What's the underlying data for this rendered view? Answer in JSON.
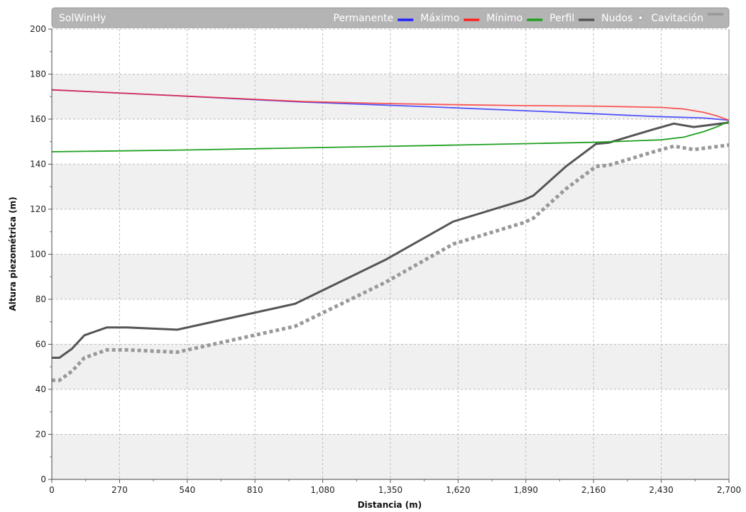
{
  "app_title": "SolWinHy",
  "chart_data": {
    "type": "line",
    "xlabel": "Distancia (m)",
    "ylabel": "Altura piezométrica (m)",
    "xlim": [
      0,
      2700
    ],
    "ylim": [
      0,
      200
    ],
    "x_ticks": [
      "0",
      "270",
      "540",
      "810",
      "1,080",
      "1,350",
      "1,620",
      "1,890",
      "2,160",
      "2,430",
      "2,700"
    ],
    "y_ticks": [
      "0",
      "20",
      "40",
      "60",
      "80",
      "100",
      "120",
      "140",
      "160",
      "180",
      "200"
    ],
    "grid": true,
    "legend_position": "top",
    "series": [
      {
        "name": "Permanente",
        "color": "#2020ff",
        "x": [
          0,
          500,
          1000,
          1500,
          2000,
          2400,
          2600,
          2700
        ],
        "y": [
          173,
          170.4,
          167.6,
          165.5,
          163.2,
          161.2,
          160.5,
          159.5
        ]
      },
      {
        "name": "Máximo",
        "color": "#ff2020",
        "x": [
          0,
          500,
          1000,
          1350,
          1620,
          1890,
          2160,
          2430,
          2520,
          2600,
          2650,
          2700
        ],
        "y": [
          173,
          170.4,
          167.8,
          166.9,
          166.4,
          166,
          165.8,
          165.2,
          164.5,
          163,
          161.5,
          159.5
        ]
      },
      {
        "name": "Mínimo",
        "color": "#20a020",
        "x": [
          0,
          540,
          1080,
          1620,
          2160,
          2430,
          2520,
          2600,
          2650,
          2700
        ],
        "y": [
          145.5,
          146.3,
          147.4,
          148.5,
          149.7,
          150.8,
          152,
          154.5,
          156.5,
          159
        ]
      },
      {
        "name": "Perfil",
        "color": "#555555",
        "x": [
          0,
          30,
          80,
          130,
          220,
          300,
          500,
          970,
          1330,
          1600,
          1880,
          1920,
          2050,
          2170,
          2220,
          2400,
          2480,
          2560,
          2700
        ],
        "y": [
          54,
          54,
          58,
          64,
          67.5,
          67.5,
          66.5,
          78,
          97.5,
          114.5,
          124,
          126,
          139,
          149,
          149.5,
          155.5,
          158,
          156.5,
          158.5
        ]
      },
      {
        "name": "Cavitación",
        "color": "#999999",
        "x": [
          0,
          30,
          80,
          130,
          220,
          300,
          500,
          970,
          1330,
          1600,
          1880,
          1920,
          2050,
          2170,
          2220,
          2400,
          2480,
          2560,
          2700
        ],
        "y": [
          44,
          44,
          48,
          54,
          57.5,
          57.5,
          56.5,
          68,
          87.5,
          104.5,
          114,
          116,
          129,
          139,
          139.5,
          145.5,
          148,
          146.5,
          148.5
        ]
      }
    ],
    "legend": [
      {
        "label": "Permanente",
        "color": "#2020ff",
        "marker": "line"
      },
      {
        "label": "Máximo",
        "color": "#ff2020",
        "marker": "line"
      },
      {
        "label": "Mínimo",
        "color": "#20a020",
        "marker": "line"
      },
      {
        "label": "Perfil",
        "color": "#555555",
        "marker": "line"
      },
      {
        "label": "Nudos",
        "color": "#ffffff",
        "marker": "dot"
      },
      {
        "label": "Cavitación",
        "color": "#999999",
        "marker": "line"
      }
    ]
  }
}
